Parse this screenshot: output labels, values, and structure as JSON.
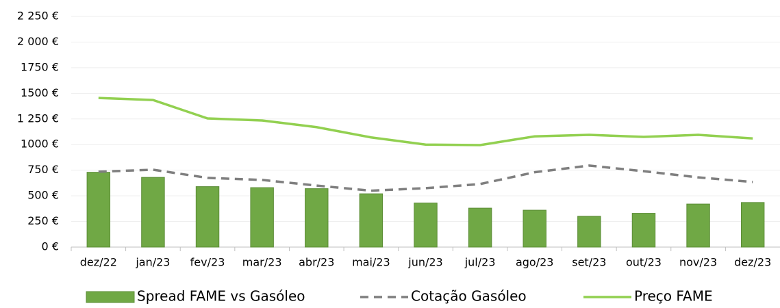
{
  "chart_data": {
    "type": "bar",
    "categories": [
      "dez/22",
      "jan/23",
      "fev/23",
      "mar/23",
      "abr/23",
      "mai/23",
      "jun/23",
      "jul/23",
      "ago/23",
      "set/23",
      "out/23",
      "nov/23",
      "dez/23"
    ],
    "series": [
      {
        "name": "Spread FAME vs Gasóleo",
        "type": "bar",
        "color": "#70a845",
        "values": [
          730,
          680,
          590,
          580,
          570,
          520,
          430,
          380,
          360,
          300,
          330,
          420,
          435
        ]
      },
      {
        "name": "Cotação Gasóleo",
        "type": "line",
        "dashed": true,
        "color": "#7f7f7f",
        "values": [
          735,
          755,
          675,
          655,
          600,
          550,
          575,
          615,
          730,
          795,
          740,
          680,
          635
        ]
      },
      {
        "name": "Preço FAME",
        "type": "line",
        "dashed": false,
        "color": "#92d050",
        "values": [
          1455,
          1435,
          1255,
          1235,
          1170,
          1070,
          1000,
          995,
          1080,
          1095,
          1075,
          1095,
          1060
        ]
      }
    ],
    "ylim": [
      0,
      2250
    ],
    "yticks": [
      {
        "value": 0,
        "label": "0 €"
      },
      {
        "value": 250,
        "label": "250 €"
      },
      {
        "value": 500,
        "label": "500 €"
      },
      {
        "value": 750,
        "label": "750 €"
      },
      {
        "value": 1000,
        "label": "1000 €"
      },
      {
        "value": 1250,
        "label": "1 250 €"
      },
      {
        "value": 1500,
        "label": "1500 €"
      },
      {
        "value": 1750,
        "label": "1750 €"
      },
      {
        "value": 2000,
        "label": "2 000 €"
      },
      {
        "value": 2250,
        "label": "2 250 €"
      }
    ],
    "grid": true,
    "legend": "bottom"
  }
}
